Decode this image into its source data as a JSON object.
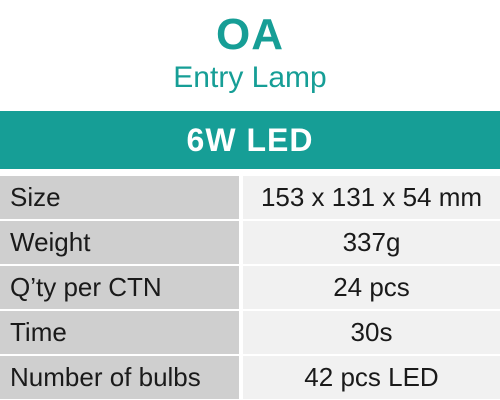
{
  "header": {
    "title": "OA",
    "subtitle": "Entry Lamp"
  },
  "banner": {
    "text": "6W LED"
  },
  "colors": {
    "accent": "#169e96",
    "label_bg": "#cfcfcf",
    "value_bg": "#f1f1f1"
  },
  "specs": [
    {
      "label": "Size",
      "value": "153 x 131 x 54 mm"
    },
    {
      "label": "Weight",
      "value": "337g"
    },
    {
      "label": "Q’ty per CTN",
      "value": "24 pcs"
    },
    {
      "label": "Time",
      "value": "30s"
    },
    {
      "label": "Number of bulbs",
      "value": "42 pcs LED"
    }
  ]
}
